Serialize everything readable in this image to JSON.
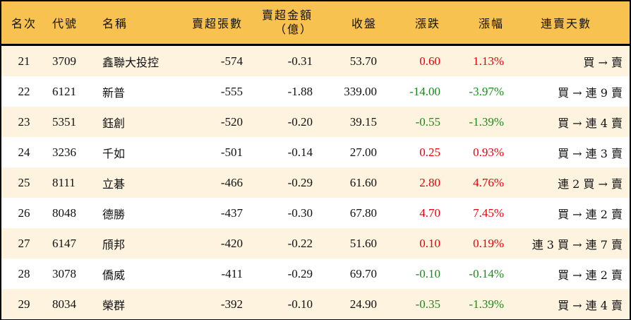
{
  "headers": {
    "rank": "名次",
    "code": "代號",
    "name": "名稱",
    "net_sell_lots": "賣超張數",
    "net_sell_amount": "賣超金額",
    "net_sell_amount_unit": "（億）",
    "close": "收盤",
    "change": "漲跌",
    "change_pct": "漲幅",
    "streak": "連賣天數"
  },
  "colors": {
    "header_bg": "#F7C250",
    "odd_row_bg": "#FDF3DF",
    "up": "#E8000B",
    "down": "#1A8A1A"
  },
  "rows": [
    {
      "rank": "21",
      "code": "3709",
      "name": "鑫聯大投控",
      "lots": "-574",
      "amount": "-0.31",
      "close": "53.70",
      "change": "0.60",
      "pct": "1.13%",
      "dir": "up",
      "streak": "買 → 賣"
    },
    {
      "rank": "22",
      "code": "6121",
      "name": "新普",
      "lots": "-555",
      "amount": "-1.88",
      "close": "339.00",
      "change": "-14.00",
      "pct": "-3.97%",
      "dir": "down",
      "streak": "買 → 連 9 賣"
    },
    {
      "rank": "23",
      "code": "5351",
      "name": "鈺創",
      "lots": "-520",
      "amount": "-0.20",
      "close": "39.15",
      "change": "-0.55",
      "pct": "-1.39%",
      "dir": "down",
      "streak": "買 → 連 4 賣"
    },
    {
      "rank": "24",
      "code": "3236",
      "name": "千如",
      "lots": "-501",
      "amount": "-0.14",
      "close": "27.00",
      "change": "0.25",
      "pct": "0.93%",
      "dir": "up",
      "streak": "買 → 連 3 賣"
    },
    {
      "rank": "25",
      "code": "8111",
      "name": "立碁",
      "lots": "-466",
      "amount": "-0.29",
      "close": "61.60",
      "change": "2.80",
      "pct": "4.76%",
      "dir": "up",
      "streak": "連 2 買 → 賣"
    },
    {
      "rank": "26",
      "code": "8048",
      "name": "德勝",
      "lots": "-437",
      "amount": "-0.30",
      "close": "67.80",
      "change": "4.70",
      "pct": "7.45%",
      "dir": "up",
      "streak": "買 → 連 2 賣"
    },
    {
      "rank": "27",
      "code": "6147",
      "name": "頎邦",
      "lots": "-420",
      "amount": "-0.22",
      "close": "51.60",
      "change": "0.10",
      "pct": "0.19%",
      "dir": "up",
      "streak": "連 3 買 → 連 7 賣"
    },
    {
      "rank": "28",
      "code": "3078",
      "name": "僑威",
      "lots": "-411",
      "amount": "-0.29",
      "close": "69.70",
      "change": "-0.10",
      "pct": "-0.14%",
      "dir": "down",
      "streak": "買 → 連 2 賣"
    },
    {
      "rank": "29",
      "code": "8034",
      "name": "榮群",
      "lots": "-392",
      "amount": "-0.10",
      "close": "24.90",
      "change": "-0.35",
      "pct": "-1.39%",
      "dir": "down",
      "streak": "買 → 連 4 賣"
    }
  ]
}
